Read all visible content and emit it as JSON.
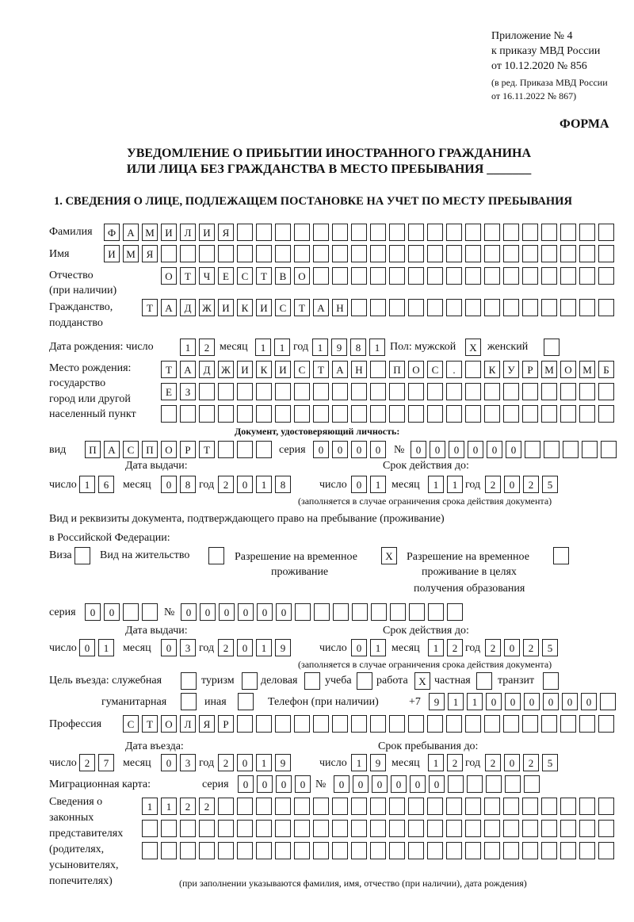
{
  "header": {
    "appendix": "Приложение № 4",
    "order": "к приказу МВД России",
    "order_date": "от 10.12.2020 № 856",
    "revision": "(в ред. Приказа МВД России",
    "revision_date": "от 16.11.2022 № 867)",
    "form_label": "ФОРМА",
    "title_line1": "УВЕДОМЛЕНИЕ О ПРИБЫТИИ ИНОСТРАННОГО ГРАЖДАНИНА",
    "title_line2": "ИЛИ ЛИЦА БЕЗ ГРАЖДАНСТВА В МЕСТО ПРЕБЫВАНИЯ _______",
    "section1": "1. СВЕДЕНИЯ О ЛИЦЕ, ПОДЛЕЖАЩЕМ ПОСТАНОВКЕ НА УЧЕТ ПО МЕСТУ ПРЕБЫВАНИЯ"
  },
  "labels": {
    "surname": "Фамилия",
    "name": "Имя",
    "patronymic": "Отчество",
    "patronymic_note": "(при наличии)",
    "citizenship": "Гражданство,",
    "citizenship2": "подданство",
    "birth_date": "Дата рождения:  число",
    "month": "месяц",
    "year": "год",
    "day": "число",
    "sex": "Пол: мужской",
    "female": "женский",
    "birth_place1": "Место рождения:",
    "birth_place2": "государство",
    "birth_place3": "город или другой",
    "birth_place4": "населенный пункт",
    "id_doc": "Документ, удостоверяющий личность:",
    "kind": "вид",
    "series": "серия",
    "number": "№",
    "issue_date": "Дата выдачи:",
    "valid_until": "Срок действия до:",
    "validity_note": "(заполняется в случае ограничения срока действия документа)",
    "stay_doc1": "Вид и реквизиты документа, подтверждающего право на пребывание (проживание)",
    "stay_doc2": "в Российской Федерации:",
    "visa": "Виза",
    "residence": "Вид на жительство",
    "temp_res1": "Разрешение на временное",
    "temp_res2": "проживание",
    "temp_edu1": "Разрешение на временное",
    "temp_edu2": "проживание в целях",
    "temp_edu3": "получения образования",
    "purpose": "Цель въезда: служебная",
    "tourism": "туризм",
    "business": "деловая",
    "study": "учеба",
    "work": "работа",
    "private": "частная",
    "transit": "транзит",
    "humanitarian": "гуманитарная",
    "other": "иная",
    "phone": "Телефон (при наличии)",
    "phone_prefix": "+7",
    "profession": "Профессия",
    "entry_date": "Дата въезда:",
    "stay_until": "Срок пребывания до:",
    "migration_card": "Миграционная карта:",
    "reps1": "Сведения о",
    "reps2": "законных",
    "reps3": "представителях",
    "reps4": "(родителях,",
    "reps5": "усыновителях,",
    "reps6": "попечителях)",
    "reps_note": "(при заполнении указываются фамилия, имя, отчество (при наличии), дата рождения)"
  },
  "fields": {
    "surname": "ФАМИЛИЯ",
    "name": "ИМЯ",
    "patronymic": "ОТЧЕСТВО",
    "citizenship": "ТАДЖИКИСТАН",
    "birth_day": "12",
    "birth_month": "11",
    "birth_year": "1981",
    "sex_male": "X",
    "sex_female": "",
    "birth_place_row1": "ТАДЖИКИСТАН ПОС. КУРМОМБ",
    "birth_place_row2": "ЕЗ",
    "birth_place_row3": "",
    "id_kind": "ПАСПОРТ",
    "id_series": "0000",
    "id_number": "000000",
    "id_issue_day": "16",
    "id_issue_month": "08",
    "id_issue_year": "2018",
    "id_valid_day": "01",
    "id_valid_month": "11",
    "id_valid_year": "2025",
    "visa": "",
    "residence_permit": "",
    "temp_residence": "X",
    "temp_residence_edu": "",
    "stay_series": "00",
    "stay_number": "000000",
    "stay_issue_day": "01",
    "stay_issue_month": "03",
    "stay_issue_year": "2019",
    "stay_valid_day": "01",
    "stay_valid_month": "12",
    "stay_valid_year": "2025",
    "purpose_official": "",
    "purpose_tourism": "",
    "purpose_business": "",
    "purpose_study": "",
    "purpose_work": "X",
    "purpose_private": "",
    "purpose_transit": "",
    "purpose_humanitarian": "",
    "purpose_other": "",
    "phone": "911000000",
    "profession": "СТОЛЯР",
    "entry_day": "27",
    "entry_month": "03",
    "entry_year": "2019",
    "stay_until_day": "19",
    "stay_until_month": "12",
    "stay_until_year": "2025",
    "migration_series": "0000",
    "migration_number": "000000",
    "reps_row1": "1122",
    "reps_row2": "",
    "reps_row3": ""
  }
}
